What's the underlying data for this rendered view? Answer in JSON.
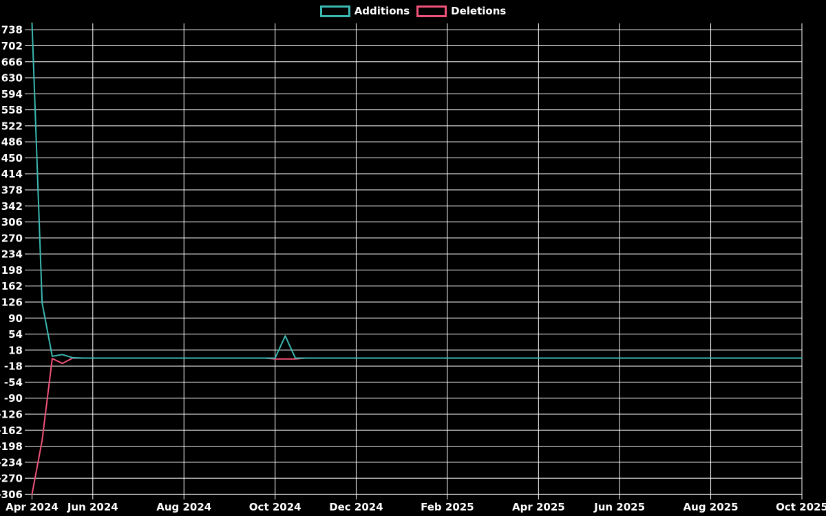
{
  "legend": {
    "items": [
      {
        "label": "Additions",
        "color": "#3abab2"
      },
      {
        "label": "Deletions",
        "color": "#f15379"
      }
    ]
  },
  "chart_data": {
    "type": "line",
    "title": "",
    "xlabel": "",
    "ylabel": "",
    "x_unit": "week",
    "weeks_total": 77,
    "x_range_labels": [
      "Apr 2024",
      "Oct 2025"
    ],
    "x_ticks": [
      {
        "week": 0,
        "label": "Apr 2024"
      },
      {
        "week": 6,
        "label": "Jun 2024"
      },
      {
        "week": 15,
        "label": "Aug 2024"
      },
      {
        "week": 24,
        "label": "Oct 2024"
      },
      {
        "week": 32,
        "label": "Dec 2024"
      },
      {
        "week": 41,
        "label": "Feb 2025"
      },
      {
        "week": 50,
        "label": "Apr 2025"
      },
      {
        "week": 58,
        "label": "Jun 2025"
      },
      {
        "week": 67,
        "label": "Aug 2025"
      },
      {
        "week": 76,
        "label": "Oct 2025"
      }
    ],
    "y_ticks": [
      738,
      702,
      666,
      630,
      594,
      558,
      522,
      486,
      450,
      414,
      378,
      342,
      306,
      270,
      234,
      198,
      162,
      126,
      90,
      54,
      18,
      -18,
      -54,
      -90,
      -126,
      -162,
      -198,
      -234,
      -270,
      -306
    ],
    "y_tick_step": 36,
    "ylim": [
      -306,
      753
    ],
    "grid": true,
    "background": "#000000",
    "grid_color": "#ffffff",
    "text_color": "#ffffff",
    "legend_position": "top-center",
    "series": [
      {
        "name": "Additions",
        "color": "#3abab2",
        "values": [
          753,
          124,
          4,
          8,
          1,
          0,
          0,
          0,
          0,
          0,
          0,
          0,
          0,
          0,
          0,
          0,
          0,
          0,
          0,
          0,
          0,
          0,
          0,
          0,
          0,
          50,
          0,
          0,
          0,
          0,
          0,
          0,
          0,
          0,
          0,
          0,
          0,
          0,
          0,
          0,
          0,
          0,
          0,
          0,
          0,
          0,
          0,
          0,
          0,
          0,
          0,
          0,
          0,
          0,
          0,
          0,
          0,
          0,
          0,
          0,
          0,
          0,
          0,
          0,
          0,
          0,
          0,
          0,
          0,
          0,
          0,
          0,
          0,
          0,
          0,
          0,
          0
        ]
      },
      {
        "name": "Deletions",
        "color": "#f15379",
        "values": [
          -306,
          -185,
          -1,
          -12,
          0,
          0,
          0,
          0,
          0,
          0,
          0,
          0,
          0,
          0,
          0,
          0,
          0,
          0,
          0,
          0,
          0,
          0,
          0,
          0,
          -2,
          -2,
          -2,
          0,
          0,
          0,
          0,
          0,
          0,
          0,
          0,
          0,
          0,
          0,
          0,
          0,
          0,
          0,
          0,
          0,
          0,
          0,
          0,
          0,
          0,
          0,
          0,
          0,
          0,
          0,
          0,
          0,
          0,
          0,
          0,
          0,
          0,
          0,
          0,
          0,
          0,
          0,
          0,
          0,
          0,
          0,
          0,
          0,
          0,
          0,
          0,
          0,
          0
        ]
      }
    ]
  }
}
